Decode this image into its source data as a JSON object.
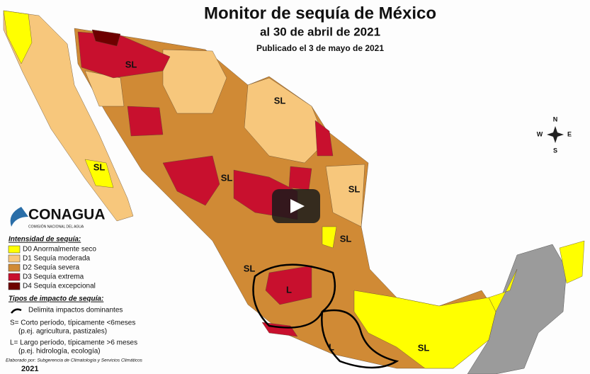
{
  "header": {
    "title": "Monitor de sequía de México",
    "subtitle": "al 30 de abril de 2021",
    "published": "Publicado el 3 de mayo de 2021"
  },
  "logo": {
    "name": "CONAGUA",
    "tagline": "COMISIÓN NACIONAL DEL AGUA"
  },
  "legend": {
    "title": "Intensidad de sequía:",
    "items": [
      {
        "label": "D0 Anormalmente seco",
        "color": "#ffff00"
      },
      {
        "label": "D1 Sequía moderada",
        "color": "#f7c77c"
      },
      {
        "label": "D2 Sequía severa",
        "color": "#d08a35"
      },
      {
        "label": "D3 Sequía extrema",
        "color": "#c8102e"
      },
      {
        "label": "D4 Sequía excepcional",
        "color": "#6e0000"
      }
    ]
  },
  "impact": {
    "title": "Tipos de impacto de sequía:",
    "boundary": "Delimita impactos dominantes",
    "short": "S= Corto período, típicamente <6meses",
    "short_example": "(p.ej. agricultura, pastizales)",
    "long": "L= Largo período, típicamente >6 meses",
    "long_example": "(p.ej. hidrología, ecología)"
  },
  "credit": "Elaborado por: Subgerencia de Climatología y Servicios Climáticos",
  "year": "2021",
  "map": {
    "labels": [
      "SL",
      "SL",
      "SL",
      "SL",
      "SL",
      "SL",
      "SL",
      "L",
      "L",
      "SL"
    ],
    "compass": [
      "N",
      "S",
      "E",
      "W"
    ]
  }
}
